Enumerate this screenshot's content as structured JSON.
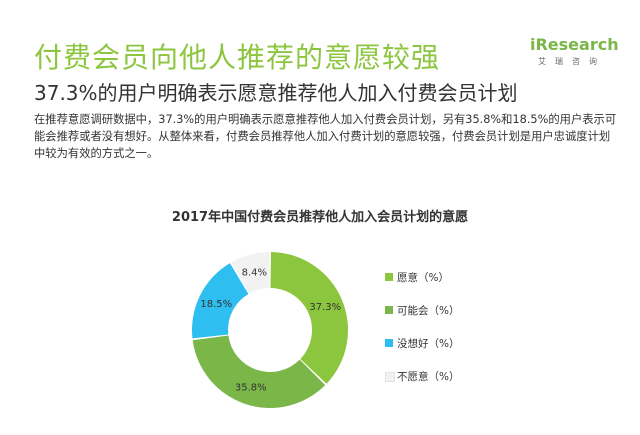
{
  "header": {
    "title": "付费会员向他人推荐的意愿较强",
    "subtitle": "37.3%的用户明确表示愿意推荐他人加入付费会员计划",
    "body": "在推荐意愿调研数据中，37.3%的用户明确表示愿意推荐他人加入付费会员计划，另有35.8%和18.5%的用户表示可能会推荐或者没有想好。从整体来看，付费会员推荐他人加入付费计划的意愿较强，付费会员计划是用户忠诚度计划中较为有效的方式之一。"
  },
  "logo": {
    "main": "iResearch",
    "sub": "艾瑞咨询"
  },
  "chart_data": {
    "type": "pie",
    "title": "2017年中国付费会员推荐他人加入会员计划的意愿",
    "categories": [
      "愿意（%）",
      "可能会（%）",
      "没想好（%）",
      "不愿意（%）"
    ],
    "values": [
      37.3,
      35.8,
      18.5,
      8.4
    ],
    "data_labels": [
      "37.3%",
      "35.8%",
      "18.5%",
      "8.4%"
    ],
    "colors": [
      "#8cc63f",
      "#7ab648",
      "#2ebef0",
      "#f2f2f2"
    ],
    "legend_position": "right"
  }
}
